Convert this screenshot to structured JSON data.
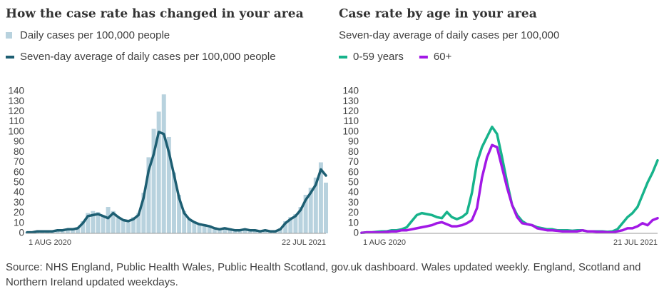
{
  "chart_data": [
    {
      "type": "combo",
      "title": "How the case rate has changed in your area",
      "categories": [
        "1 AUG 2020",
        null,
        null,
        null,
        null,
        null,
        null,
        null,
        null,
        null,
        null,
        null,
        null,
        null,
        null,
        null,
        null,
        null,
        null,
        null,
        null,
        null,
        null,
        null,
        null,
        null,
        null,
        null,
        null,
        null,
        null,
        null,
        null,
        null,
        null,
        null,
        null,
        null,
        null,
        null,
        null,
        null,
        null,
        null,
        null,
        null,
        null,
        null,
        null,
        null,
        null,
        null,
        null,
        null,
        null,
        null,
        null,
        null,
        null,
        "22 JUL 2021"
      ],
      "series": [
        {
          "name": "Daily cases per 100,000 people",
          "color": "#b8d2de",
          "mark": "bar",
          "values": [
            1,
            1,
            2,
            3,
            2,
            2,
            3,
            3,
            4,
            5,
            6,
            12,
            20,
            22,
            21,
            18,
            26,
            22,
            15,
            13,
            11,
            16,
            20,
            40,
            75,
            103,
            120,
            137,
            95,
            60,
            38,
            22,
            15,
            12,
            10,
            9,
            8,
            6,
            5,
            6,
            5,
            4,
            3,
            4,
            4,
            3,
            3,
            3,
            2,
            2,
            5,
            12,
            16,
            19,
            26,
            38,
            45,
            55,
            70,
            50
          ]
        },
        {
          "name": "Seven-day average of daily cases per 100,000 people",
          "color": "#1d5e72",
          "mark": "line",
          "values": [
            1,
            1,
            2,
            2,
            2,
            2,
            3,
            3,
            4,
            4,
            5,
            10,
            17,
            18,
            19,
            17,
            15,
            20,
            16,
            13,
            12,
            14,
            18,
            35,
            62,
            78,
            100,
            98,
            80,
            58,
            35,
            20,
            14,
            11,
            9,
            8,
            7,
            5,
            4,
            5,
            4,
            3,
            3,
            4,
            3,
            3,
            2,
            3,
            2,
            2,
            4,
            10,
            14,
            17,
            23,
            33,
            40,
            48,
            63,
            57
          ]
        }
      ],
      "ylim": [
        0,
        140
      ],
      "yticks": [
        0,
        10,
        20,
        30,
        40,
        50,
        60,
        70,
        80,
        90,
        100,
        110,
        120,
        130,
        140
      ],
      "grid": false
    },
    {
      "type": "line",
      "title": "Case rate by age in your area",
      "subtitle": "Seven-day average of daily cases per 100,000",
      "categories": [
        "1 AUG 2020",
        null,
        null,
        null,
        null,
        null,
        null,
        null,
        null,
        null,
        null,
        null,
        null,
        null,
        null,
        null,
        null,
        null,
        null,
        null,
        null,
        null,
        null,
        null,
        null,
        null,
        null,
        null,
        null,
        null,
        null,
        null,
        null,
        null,
        null,
        null,
        null,
        null,
        null,
        null,
        null,
        null,
        null,
        null,
        null,
        null,
        null,
        null,
        null,
        null,
        null,
        null,
        null,
        null,
        null,
        null,
        null,
        null,
        null,
        "21 JUL 2021"
      ],
      "series": [
        {
          "name": "0-59 years",
          "color": "#17b38b",
          "values": [
            0.5,
            1,
            1,
            1.5,
            2,
            2,
            3,
            3,
            4,
            6,
            12,
            18,
            20,
            19,
            18,
            16,
            15,
            21,
            16,
            14,
            16,
            20,
            40,
            70,
            85,
            95,
            105,
            98,
            75,
            50,
            28,
            18,
            12,
            9,
            8,
            6,
            5,
            4,
            4,
            3,
            3,
            3,
            2.5,
            3,
            3,
            2,
            2,
            2,
            2,
            1.5,
            2,
            4,
            10,
            16,
            20,
            26,
            38,
            50,
            60,
            72
          ]
        },
        {
          "name": "60+",
          "color": "#a218e6",
          "values": [
            0.5,
            1,
            1,
            1,
            1,
            1.5,
            2,
            2,
            3,
            3,
            4,
            5,
            6,
            7,
            8,
            10,
            11,
            9,
            7,
            7,
            8,
            10,
            13,
            25,
            55,
            75,
            87,
            85,
            65,
            45,
            28,
            16,
            10,
            9,
            8,
            5,
            4,
            3,
            3,
            2.5,
            2,
            2,
            2,
            2,
            3,
            2,
            2,
            1.5,
            1.5,
            1,
            1,
            2,
            3,
            5,
            5,
            7,
            10,
            8,
            13,
            15
          ]
        }
      ],
      "ylim": [
        0,
        140
      ],
      "yticks": [
        0,
        10,
        20,
        30,
        40,
        50,
        60,
        70,
        80,
        90,
        100,
        110,
        120,
        130,
        140
      ],
      "grid": false
    }
  ],
  "source": "Source: NHS England, Public Health Wales, Public Health Scotland, gov.uk dashboard. Wales updated weekly. England, Scotland and Northern Ireland updated weekdays."
}
